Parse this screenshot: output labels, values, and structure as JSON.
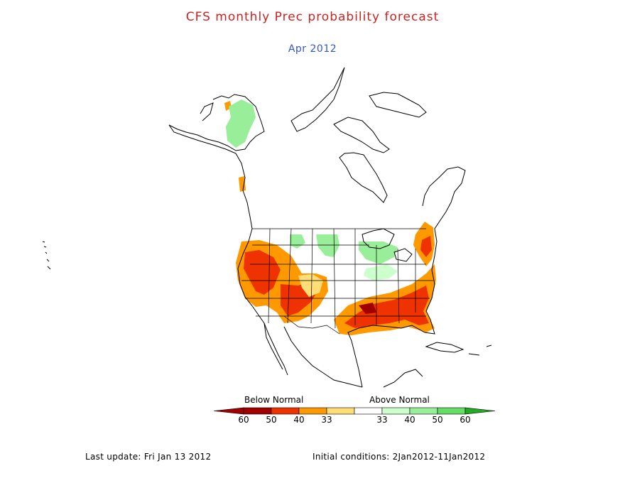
{
  "title": "CFS monthly Prec probability forecast",
  "subtitle": "Apr 2012",
  "colors": {
    "title": "#cc2222",
    "subtitle": "#3355cc",
    "coast": "#000000",
    "below_60": "#a00000",
    "below_50": "#ee3300",
    "below_40": "#ff9900",
    "below_33": "#ffdd77",
    "above_33": "#ccffcc",
    "above_40": "#99ee99",
    "above_50": "#66dd66",
    "above_60": "#22aa22"
  },
  "legend": {
    "below_label": "Below Normal",
    "above_label": "Above Normal",
    "bins": [
      {
        "label": "60",
        "color": "#a00000"
      },
      {
        "label": "50",
        "color": "#ee3300"
      },
      {
        "label": "40",
        "color": "#ff9900"
      },
      {
        "label": "33",
        "color": "#ffdd77"
      },
      {
        "label": "33",
        "color": "#ffffff"
      },
      {
        "label": "40",
        "color": "#ccffcc"
      },
      {
        "label": "50",
        "color": "#99ee99"
      },
      {
        "label": "60",
        "color": "#66dd66"
      }
    ],
    "tail_below_color": "#a00000",
    "tail_above_color": "#22aa22"
  },
  "footer": {
    "last_update": "Last update: Fri Jan 13 2012",
    "initial_conditions": "Initial conditions: 2Jan2012-11Jan2012"
  }
}
